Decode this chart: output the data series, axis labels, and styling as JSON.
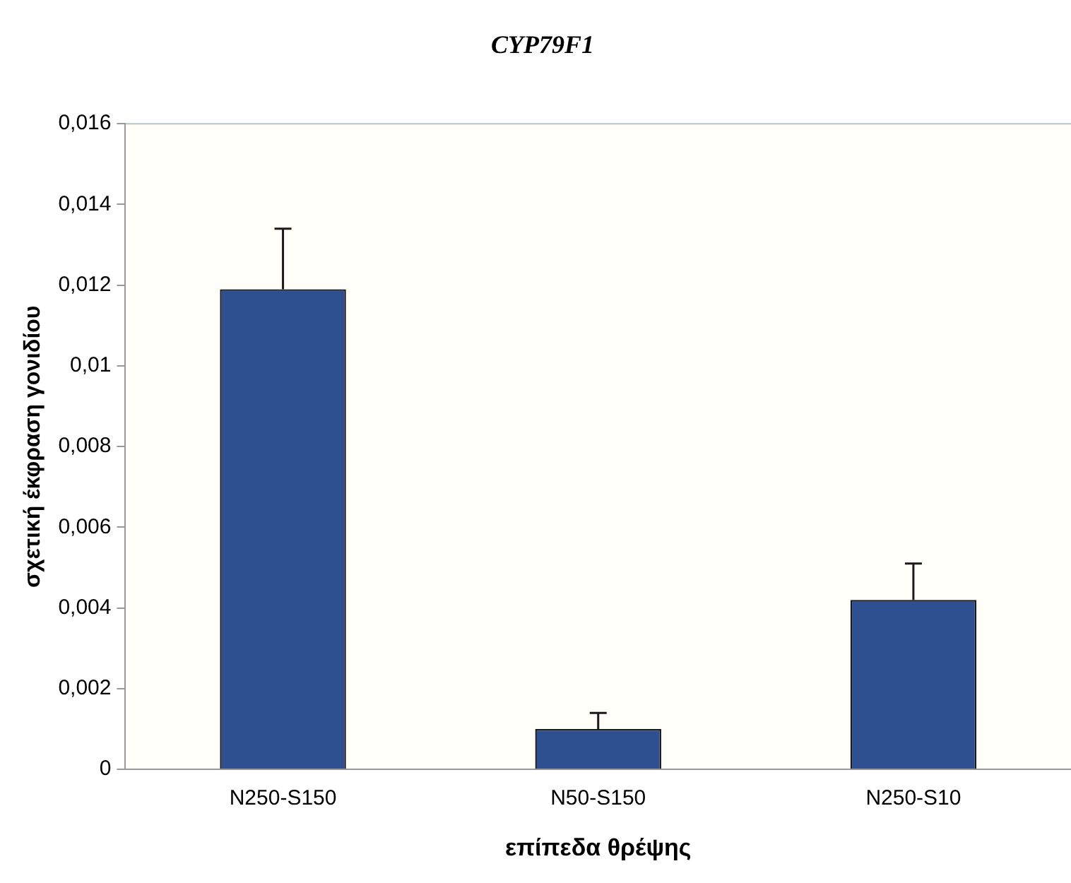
{
  "chart_data": {
    "type": "bar",
    "title": "CYP79F1",
    "xlabel": "επίπεδα θρέψης",
    "ylabel": "σχετική έκφραση γονιδίου",
    "categories": [
      "N250-S150",
      "N50-S150",
      "N250-S10"
    ],
    "series": [
      {
        "color": "#2e5090",
        "values": [
          0.0119,
          0.001,
          0.0042
        ],
        "errors": [
          0.0015,
          0.0004,
          0.0009
        ]
      }
    ],
    "ylim": [
      0,
      0.016
    ],
    "yticks": [
      {
        "value": 0,
        "label": "0"
      },
      {
        "value": 0.002,
        "label": "0,002"
      },
      {
        "value": 0.004,
        "label": "0,004"
      },
      {
        "value": 0.006,
        "label": "0,006"
      },
      {
        "value": 0.008,
        "label": "0,008"
      },
      {
        "value": 0.01,
        "label": "0,01"
      },
      {
        "value": 0.012,
        "label": "0,012"
      },
      {
        "value": 0.014,
        "label": "0,014"
      },
      {
        "value": 0.016,
        "label": "0,016"
      }
    ],
    "grid": false,
    "legend": false
  }
}
